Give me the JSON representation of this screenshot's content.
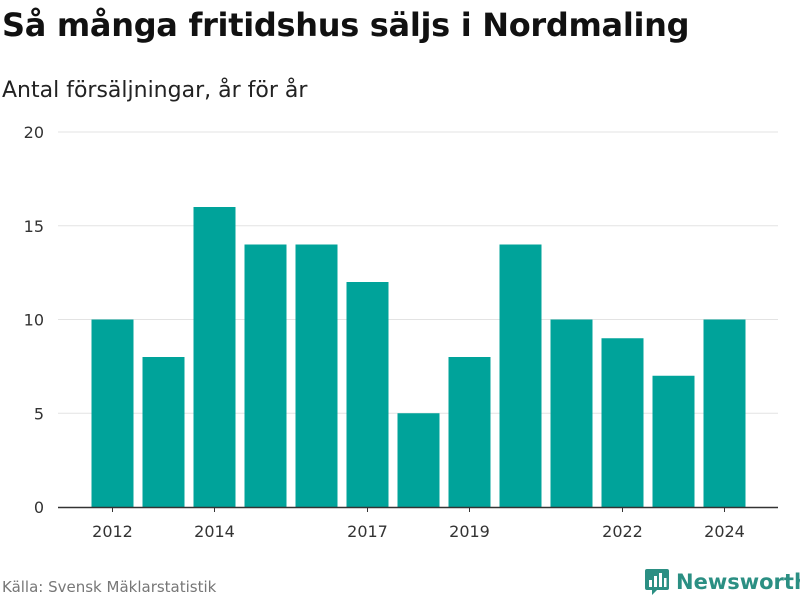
{
  "title": "Så många fritidshus säljs i Nordmaling",
  "subtitle": "Antal försäljningar, år för år",
  "source": "Källa: Svensk Mäklarstatistik",
  "brand": {
    "name": "Newsworthy",
    "icon": "bar-chart-logo-icon",
    "color": "#2b8f83"
  },
  "chart_data": {
    "type": "bar",
    "categories": [
      "2012",
      "2013",
      "2014",
      "2015",
      "2016",
      "2017",
      "2018",
      "2019",
      "2020",
      "2021",
      "2022",
      "2023",
      "2024"
    ],
    "values": [
      10,
      8,
      16,
      14,
      14,
      12,
      5,
      8,
      14,
      10,
      9,
      7,
      10
    ],
    "x_tick_labels": [
      "2012",
      "2014",
      "2017",
      "2019",
      "2022",
      "2024"
    ],
    "y_ticks": [
      "0",
      "5",
      "10",
      "15",
      "20"
    ],
    "ylim": [
      0,
      20
    ],
    "bar_color": "#00a39a",
    "grid": true
  }
}
